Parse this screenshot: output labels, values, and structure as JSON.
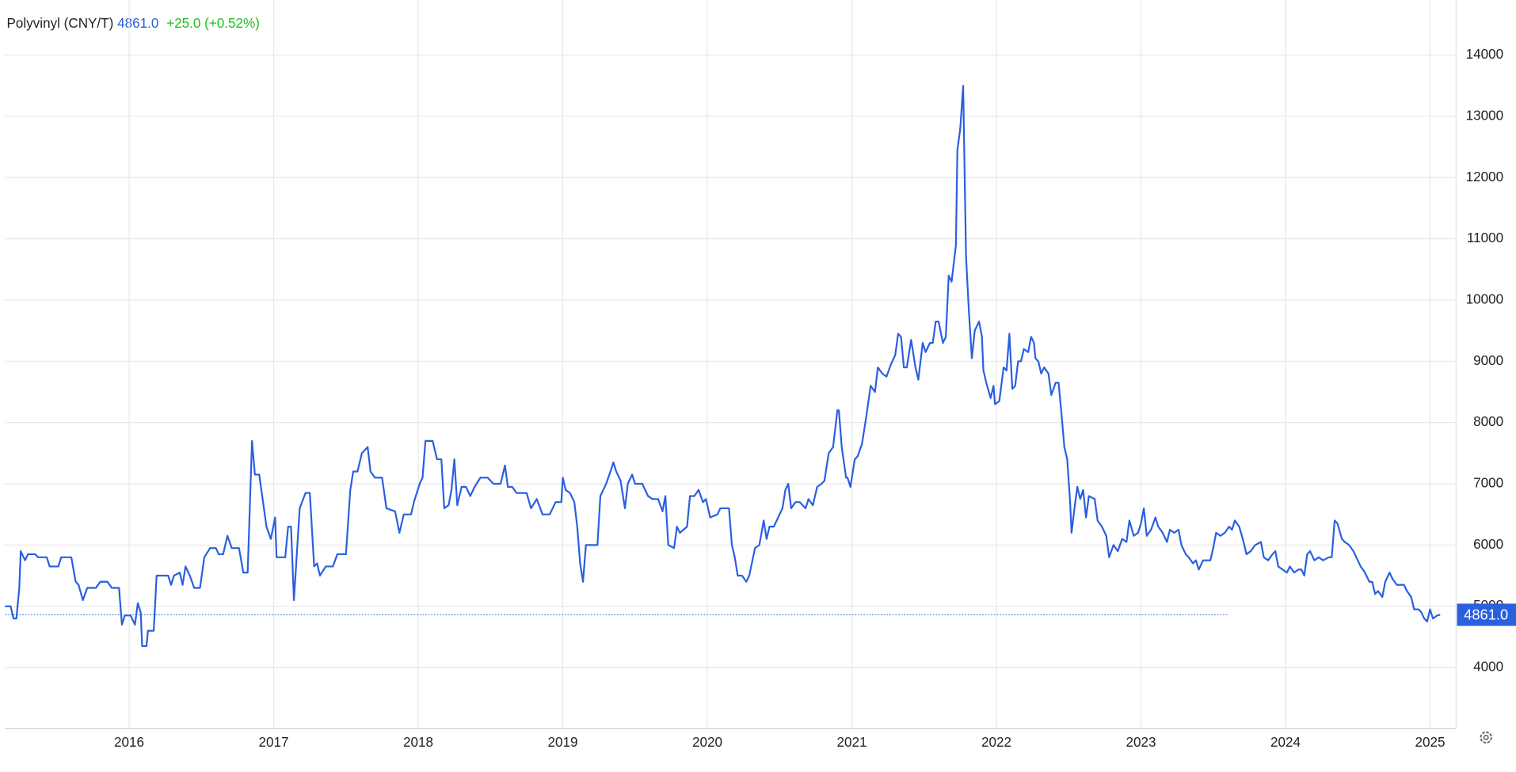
{
  "chart_data": {
    "type": "line",
    "title": "Polyvinyl (CNY/T)",
    "last_value": {
      "value": 4861,
      "label": "4861.0"
    },
    "change": "+25.0 (+0.52%)",
    "color": "#2a5fe0",
    "grid": true,
    "xlim": [
      2015.14,
      2025.18
    ],
    "ylim": [
      3000,
      14900
    ],
    "xticks": [
      2016,
      2017,
      2018,
      2019,
      2020,
      2021,
      2022,
      2023,
      2024,
      2025
    ],
    "yticks": [
      4000,
      5000,
      6000,
      7000,
      8000,
      9000,
      10000,
      11000,
      12000,
      13000,
      14000
    ],
    "x": [
      2015.14,
      2015.18,
      2015.2,
      2015.22,
      2015.24,
      2015.25,
      2015.28,
      2015.3,
      2015.35,
      2015.37,
      2015.43,
      2015.45,
      2015.51,
      2015.53,
      2015.6,
      2015.63,
      2015.65,
      2015.68,
      2015.71,
      2015.77,
      2015.8,
      2015.85,
      2015.88,
      2015.93,
      2015.95,
      2015.97,
      2016.01,
      2016.04,
      2016.06,
      2016.08,
      2016.09,
      2016.12,
      2016.13,
      2016.17,
      2016.19,
      2016.27,
      2016.29,
      2016.31,
      2016.35,
      2016.37,
      2016.39,
      2016.42,
      2016.45,
      2016.49,
      2016.52,
      2016.56,
      2016.6,
      2016.62,
      2016.65,
      2016.68,
      2016.71,
      2016.76,
      2016.79,
      2016.82,
      2016.85,
      2016.87,
      2016.9,
      2016.95,
      2016.98,
      2017.01,
      2017.02,
      2017.08,
      2017.1,
      2017.12,
      2017.14,
      2017.18,
      2017.22,
      2017.25,
      2017.28,
      2017.3,
      2017.32,
      2017.36,
      2017.41,
      2017.44,
      2017.5,
      2017.53,
      2017.55,
      2017.58,
      2017.61,
      2017.65,
      2017.67,
      2017.7,
      2017.75,
      2017.78,
      2017.84,
      2017.87,
      2017.9,
      2017.95,
      2017.97,
      2018.01,
      2018.03,
      2018.05,
      2018.1,
      2018.13,
      2018.16,
      2018.18,
      2018.21,
      2018.23,
      2018.25,
      2018.27,
      2018.3,
      2018.33,
      2018.36,
      2018.39,
      2018.43,
      2018.48,
      2018.52,
      2018.57,
      2018.6,
      2018.62,
      2018.65,
      2018.68,
      2018.75,
      2018.78,
      2018.82,
      2018.86,
      2018.91,
      2018.95,
      2018.99,
      2019.0,
      2019.02,
      2019.05,
      2019.08,
      2019.1,
      2019.12,
      2019.14,
      2019.16,
      2019.24,
      2019.26,
      2019.3,
      2019.33,
      2019.35,
      2019.37,
      2019.4,
      2019.43,
      2019.45,
      2019.48,
      2019.5,
      2019.55,
      2019.59,
      2019.62,
      2019.66,
      2019.69,
      2019.71,
      2019.73,
      2019.77,
      2019.79,
      2019.81,
      2019.86,
      2019.88,
      2019.91,
      2019.94,
      2019.97,
      2019.99,
      2020.02,
      2020.07,
      2020.09,
      2020.15,
      2020.17,
      2020.19,
      2020.21,
      2020.24,
      2020.27,
      2020.29,
      2020.33,
      2020.36,
      2020.39,
      2020.41,
      2020.43,
      2020.46,
      2020.49,
      2020.52,
      2020.54,
      2020.56,
      2020.58,
      2020.61,
      2020.64,
      2020.68,
      2020.7,
      2020.73,
      2020.76,
      2020.79,
      2020.81,
      2020.84,
      2020.87,
      2020.9,
      2020.91,
      2020.93,
      2020.96,
      2020.97,
      2020.99,
      2021.02,
      2021.04,
      2021.07,
      2021.1,
      2021.13,
      2021.16,
      2021.18,
      2021.21,
      2021.24,
      2021.27,
      2021.3,
      2021.32,
      2021.34,
      2021.36,
      2021.38,
      2021.41,
      2021.44,
      2021.46,
      2021.49,
      2021.51,
      2021.54,
      2021.56,
      2021.58,
      2021.6,
      2021.63,
      2021.65,
      2021.67,
      2021.69,
      2021.72,
      2021.73,
      2021.75,
      2021.77,
      2021.79,
      2021.81,
      2021.83,
      2021.85,
      2021.88,
      2021.9,
      2021.91,
      2021.93,
      2021.96,
      2021.98,
      2021.99,
      2022.02,
      2022.05,
      2022.07,
      2022.09,
      2022.11,
      2022.13,
      2022.15,
      2022.17,
      2022.19,
      2022.22,
      2022.24,
      2022.26,
      2022.27,
      2022.29,
      2022.31,
      2022.33,
      2022.36,
      2022.38,
      2022.41,
      2022.43,
      2022.45,
      2022.47,
      2022.49,
      2022.51,
      2022.52,
      2022.54,
      2022.56,
      2022.58,
      2022.6,
      2022.62,
      2022.64,
      2022.68,
      2022.7,
      2022.73,
      2022.76,
      2022.78,
      2022.81,
      2022.84,
      2022.87,
      2022.9,
      2022.92,
      2022.95,
      2022.98,
      2023.0,
      2023.02,
      2023.04,
      2023.07,
      2023.1,
      2023.12,
      2023.15,
      2023.18,
      2023.2,
      2023.23,
      2023.26,
      2023.28,
      2023.31,
      2023.33,
      2023.36,
      2023.38,
      2023.4,
      2023.43,
      2023.48,
      2023.5,
      2023.52,
      2023.55,
      2023.58,
      2023.61,
      2023.63,
      2023.65,
      2023.68,
      2023.71,
      2023.73,
      2023.76,
      2023.79,
      2023.83,
      2023.85,
      2023.88,
      2023.91,
      2023.93,
      2023.95,
      2023.98,
      2024.01,
      2024.03,
      2024.06,
      2024.09,
      2024.11,
      2024.13,
      2024.15,
      2024.17,
      2024.2,
      2024.23,
      2024.26,
      2024.3,
      2024.32,
      2024.34,
      2024.36,
      2024.39,
      2024.41,
      2024.44,
      2024.47,
      2024.5,
      2024.52,
      2024.55,
      2024.58,
      2024.6,
      2024.62,
      2024.64,
      2024.67,
      2024.69,
      2024.72,
      2024.74,
      2024.77,
      2024.82,
      2024.84,
      2024.87,
      2024.89,
      2024.92,
      2024.94,
      2024.96,
      2024.98,
      2025.0,
      2025.02,
      2025.05,
      2025.07
    ],
    "values": [
      5000,
      5000,
      4800,
      4800,
      5300,
      5900,
      5750,
      5850,
      5850,
      5800,
      5800,
      5650,
      5650,
      5800,
      5800,
      5400,
      5350,
      5100,
      5300,
      5300,
      5400,
      5400,
      5300,
      5300,
      4700,
      4850,
      4850,
      4700,
      5050,
      4900,
      4350,
      4350,
      4600,
      4600,
      5500,
      5500,
      5350,
      5500,
      5550,
      5350,
      5650,
      5500,
      5300,
      5300,
      5800,
      5950,
      5950,
      5850,
      5850,
      6150,
      5950,
      5950,
      5550,
      5550,
      7700,
      7150,
      7150,
      6300,
      6100,
      6450,
      5800,
      5800,
      6300,
      6300,
      5100,
      6600,
      6850,
      6850,
      5650,
      5700,
      5500,
      5650,
      5650,
      5850,
      5850,
      6900,
      7200,
      7200,
      7500,
      7600,
      7200,
      7100,
      7100,
      6600,
      6550,
      6200,
      6500,
      6500,
      6700,
      7000,
      7100,
      7700,
      7700,
      7400,
      7400,
      6600,
      6650,
      6900,
      7400,
      6650,
      6950,
      6950,
      6800,
      6950,
      7100,
      7100,
      7000,
      7000,
      7300,
      6950,
      6950,
      6850,
      6850,
      6600,
      6750,
      6500,
      6500,
      6700,
      6700,
      7100,
      6900,
      6850,
      6700,
      6300,
      5700,
      5400,
      6000,
      6000,
      6800,
      7000,
      7200,
      7350,
      7200,
      7050,
      6600,
      7000,
      7150,
      7000,
      7000,
      6800,
      6750,
      6750,
      6550,
      6800,
      6000,
      5950,
      6300,
      6200,
      6300,
      6800,
      6800,
      6900,
      6700,
      6750,
      6450,
      6500,
      6600,
      6600,
      6000,
      5800,
      5500,
      5500,
      5400,
      5500,
      5950,
      6000,
      6400,
      6100,
      6300,
      6300,
      6450,
      6600,
      6900,
      7000,
      6600,
      6700,
      6700,
      6600,
      6750,
      6650,
      6950,
      7000,
      7050,
      7500,
      7600,
      8200,
      8200,
      7600,
      7100,
      7100,
      6950,
      7400,
      7450,
      7650,
      8100,
      8600,
      8500,
      8900,
      8800,
      8750,
      8950,
      9100,
      9450,
      9400,
      8900,
      8900,
      9350,
      8900,
      8700,
      9300,
      9150,
      9300,
      9300,
      9650,
      9650,
      9300,
      9400,
      10400,
      10300,
      10900,
      12450,
      12800,
      13500,
      10700,
      9800,
      9050,
      9500,
      9650,
      9400,
      8850,
      8650,
      8400,
      8600,
      8300,
      8350,
      8900,
      8850,
      9450,
      8550,
      8600,
      9000,
      9000,
      9200,
      9150,
      9400,
      9300,
      9050,
      9000,
      8800,
      8900,
      8800,
      8450,
      8650,
      8650,
      8150,
      7600,
      7400,
      6700,
      6200,
      6600,
      6950,
      6750,
      6900,
      6450,
      6800,
      6750,
      6400,
      6300,
      6150,
      5800,
      6000,
      5900,
      6100,
      6050,
      6400,
      6150,
      6200,
      6350,
      6600,
      6150,
      6250,
      6450,
      6300,
      6200,
      6050,
      6250,
      6200,
      6250,
      6000,
      5850,
      5800,
      5700,
      5750,
      5600,
      5750,
      5750,
      5950,
      6200,
      6150,
      6200,
      6300,
      6250,
      6400,
      6300,
      6050,
      5850,
      5900,
      6000,
      6050,
      5800,
      5750,
      5850,
      5900,
      5650,
      5600,
      5550,
      5650,
      5550,
      5600,
      5600,
      5500,
      5850,
      5900,
      5750,
      5800,
      5750,
      5800,
      5800,
      6400,
      6350,
      6100,
      6050,
      6000,
      5900,
      5750,
      5650,
      5550,
      5400,
      5400,
      5200,
      5250,
      5150,
      5400,
      5550,
      5450,
      5350,
      5350,
      5250,
      5150,
      4950,
      4950,
      4900,
      4800,
      4750,
      4950,
      4800,
      4850,
      4861
    ]
  }
}
